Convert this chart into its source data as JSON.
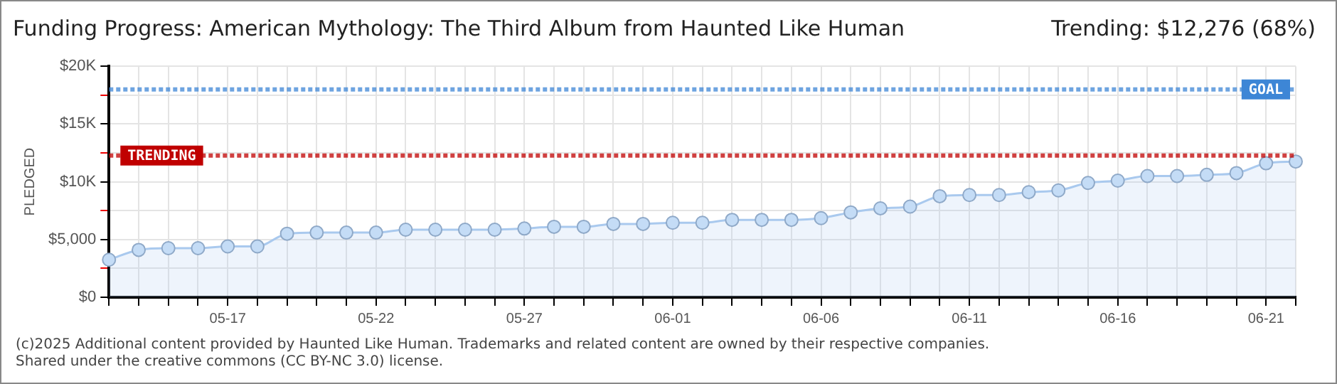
{
  "chart_data": {
    "type": "area",
    "title": "Funding Progress: American Mythology: The Third Album from Haunted Like Human",
    "subtitle": "Trending: $12,276 (68%)",
    "ylabel": "PLEDGED",
    "categories": [
      null,
      null,
      null,
      null,
      "05-17",
      null,
      null,
      null,
      null,
      "05-22",
      null,
      null,
      null,
      null,
      "05-27",
      null,
      null,
      null,
      null,
      "06-01",
      null,
      null,
      null,
      null,
      "06-06",
      null,
      null,
      null,
      null,
      "06-11",
      null,
      null,
      null,
      null,
      "06-16",
      null,
      null,
      null,
      null,
      "06-21",
      null
    ],
    "series": [
      {
        "color": "#a9c9ee",
        "values": [
          3250,
          4100,
          4250,
          4250,
          4400,
          4400,
          5500,
          5600,
          5600,
          5600,
          5850,
          5850,
          5850,
          5850,
          5950,
          6100,
          6100,
          6350,
          6350,
          6450,
          6450,
          6700,
          6700,
          6700,
          6850,
          7350,
          7700,
          7850,
          8750,
          8850,
          8850,
          9100,
          9250,
          9900,
          10100,
          10500,
          10500,
          10600,
          10750,
          11600,
          11750
        ]
      }
    ],
    "ylim": [
      0,
      20000
    ],
    "yticks": [
      {
        "value": 0,
        "label": "$0"
      },
      {
        "value": 2500,
        "label": null
      },
      {
        "value": 5000,
        "label": "$5,000"
      },
      {
        "value": 7500,
        "label": null
      },
      {
        "value": 10000,
        "label": "$10K"
      },
      {
        "value": 12500,
        "label": null
      },
      {
        "value": 15000,
        "label": "$15K"
      },
      {
        "value": 17500,
        "label": null
      },
      {
        "value": 20000,
        "label": "$20K"
      }
    ],
    "ref_lines": [
      {
        "axis": "y",
        "value": 18000,
        "label": "GOAL",
        "color": "#3d86d6",
        "line_style": "dotted"
      },
      {
        "axis": "y",
        "value": 12276,
        "label": "TRENDING",
        "color": "#c00000",
        "line_style": "dotted"
      }
    ],
    "annotations": [
      "(c)2025 Additional content provided by Haunted Like Human. Trademarks and related content are owned by their respective companies.",
      "Shared under the creative commons (CC BY-NC 3.0) license."
    ],
    "grid": true,
    "marker": "circle",
    "line_style": "solid",
    "legend": false
  }
}
